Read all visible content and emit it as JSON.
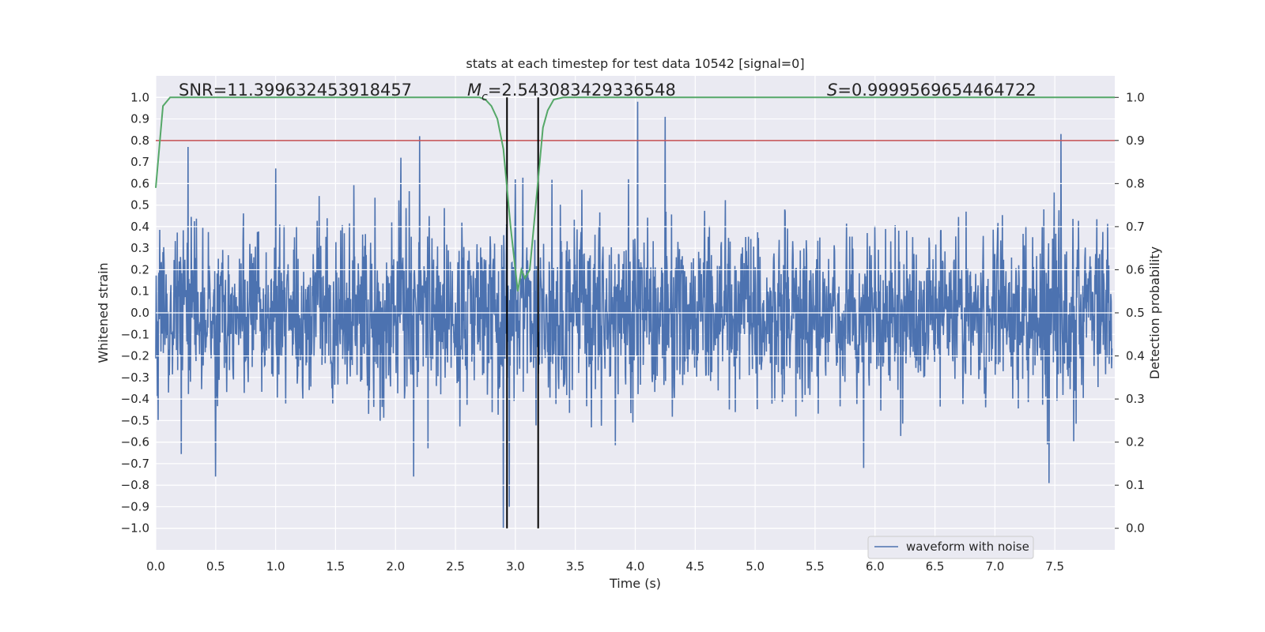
{
  "chart_data": {
    "type": "line",
    "title": "stats at each timestep for test data 10542 [signal=0]",
    "xlabel": "Time (s)",
    "ylabel_left": "Whitened strain",
    "ylabel_right": "Detection probability",
    "xlim": [
      0.0,
      8.0
    ],
    "ylim_left": [
      -1.1,
      1.1
    ],
    "ylim_right": [
      -0.05,
      1.05
    ],
    "grid": true,
    "legend_position": "lower-right",
    "x_ticks": [
      "0.0",
      "0.5",
      "1.0",
      "1.5",
      "2.0",
      "2.5",
      "3.0",
      "3.5",
      "4.0",
      "4.5",
      "5.0",
      "5.5",
      "6.0",
      "6.5",
      "7.0",
      "7.5"
    ],
    "x_tick_values": [
      0.0,
      0.5,
      1.0,
      1.5,
      2.0,
      2.5,
      3.0,
      3.5,
      4.0,
      4.5,
      5.0,
      5.5,
      6.0,
      6.5,
      7.0,
      7.5
    ],
    "y_left_ticks": [
      "1.0",
      "0.9",
      "0.8",
      "0.7",
      "0.6",
      "0.5",
      "0.4",
      "0.3",
      "0.2",
      "0.1",
      "0.0",
      "-0.1",
      "-0.2",
      "-0.3",
      "-0.4",
      "-0.5",
      "-0.6",
      "-0.7",
      "-0.8",
      "-0.9",
      "-1.0"
    ],
    "y_left_tick_values": [
      1.0,
      0.9,
      0.8,
      0.7,
      0.6,
      0.5,
      0.4,
      0.3,
      0.2,
      0.1,
      0.0,
      -0.1,
      -0.2,
      -0.3,
      -0.4,
      -0.5,
      -0.6,
      -0.7,
      -0.8,
      -0.9,
      -1.0
    ],
    "y_right_ticks": [
      "1.0",
      "0.9",
      "0.8",
      "0.7",
      "0.6",
      "0.5",
      "0.4",
      "0.3",
      "0.2",
      "0.1",
      "0.0"
    ],
    "y_right_tick_values": [
      1.0,
      0.9,
      0.8,
      0.7,
      0.6,
      0.5,
      0.4,
      0.3,
      0.2,
      0.1,
      0.0
    ],
    "annotations": {
      "snr": "SNR=11.399632453918457",
      "mc": "=2.543083429336548",
      "mc_symbol": "M",
      "mc_sub": "c",
      "s": "=0.9999569654464722",
      "s_symbol": "S"
    },
    "threshold": {
      "name": "detection threshold",
      "value": 0.9,
      "axis": "right",
      "color": "#c44e52"
    },
    "vlines": [
      {
        "name": "window-start",
        "x": 2.93,
        "color": "#000000"
      },
      {
        "name": "window-end",
        "x": 3.19,
        "color": "#000000"
      }
    ],
    "series": [
      {
        "name": "waveform with noise",
        "axis": "left",
        "color": "#4c72b0",
        "description": "whitened strain noise, approx +/-0.4 envelope with spikes up to ~0.98 and down to -1.0",
        "peaks_positive": [
          [
            0.27,
            0.77
          ],
          [
            1.0,
            0.67
          ],
          [
            2.2,
            0.82
          ],
          [
            4.02,
            0.98
          ],
          [
            4.25,
            0.91
          ],
          [
            7.55,
            0.83
          ]
        ],
        "peaks_negative": [
          [
            0.5,
            -0.76
          ],
          [
            2.15,
            -0.76
          ],
          [
            2.9,
            -1.0
          ],
          [
            2.95,
            -0.9
          ],
          [
            7.45,
            -0.79
          ]
        ]
      },
      {
        "name": "Detection probability",
        "axis": "right",
        "color": "#55a868",
        "x": [
          0.0,
          0.06,
          0.12,
          2.6,
          2.7,
          2.75,
          2.8,
          2.85,
          2.9,
          2.96,
          3.0,
          3.02,
          3.05,
          3.08,
          3.12,
          3.18,
          3.23,
          3.27,
          3.32,
          3.4,
          8.0
        ],
        "values": [
          0.79,
          0.98,
          1.0,
          1.0,
          1.0,
          0.995,
          0.98,
          0.95,
          0.88,
          0.7,
          0.6,
          0.55,
          0.6,
          0.58,
          0.6,
          0.78,
          0.93,
          0.97,
          0.995,
          1.0,
          1.0
        ]
      }
    ],
    "legend": [
      "waveform with noise"
    ]
  }
}
